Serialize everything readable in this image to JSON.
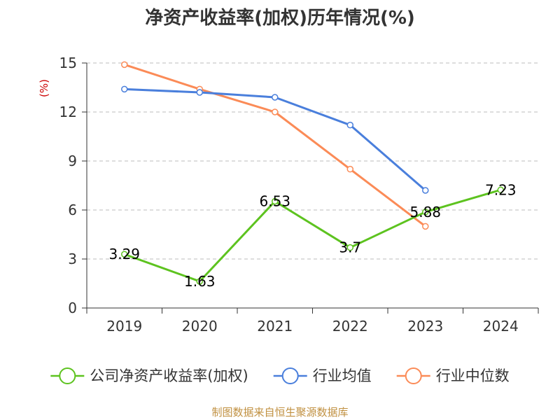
{
  "chart_data": {
    "type": "line",
    "title": "净资产收益率(加权)历年情况(%)",
    "ylabel": "(%)",
    "xlabel": "",
    "categories": [
      "2019",
      "2020",
      "2021",
      "2022",
      "2023",
      "2024"
    ],
    "ylim": [
      0,
      15
    ],
    "yticks": [
      0,
      3,
      6,
      9,
      12,
      15
    ],
    "grid": true,
    "legend_position": "bottom",
    "series": [
      {
        "name": "公司净资产收益率(加权)",
        "color": "#5dc31f",
        "values": [
          3.29,
          1.63,
          6.53,
          3.7,
          5.88,
          7.23
        ],
        "data_labels": [
          "3.29",
          "1.63",
          "6.53",
          "3.7",
          "5.88",
          "7.23"
        ]
      },
      {
        "name": "行业均值",
        "color": "#4a7fdc",
        "values": [
          13.4,
          13.2,
          12.9,
          11.2,
          7.2,
          null
        ]
      },
      {
        "name": "行业中位数",
        "color": "#fb8b57",
        "values": [
          14.9,
          13.4,
          12.0,
          8.5,
          5.0,
          null
        ]
      }
    ]
  },
  "source": "制图数据来自恒生聚源数据库",
  "colors": {
    "ylabel": "#cc0000",
    "source": "#c09040",
    "axis": "#333333",
    "grid": "#bbbbbb"
  }
}
